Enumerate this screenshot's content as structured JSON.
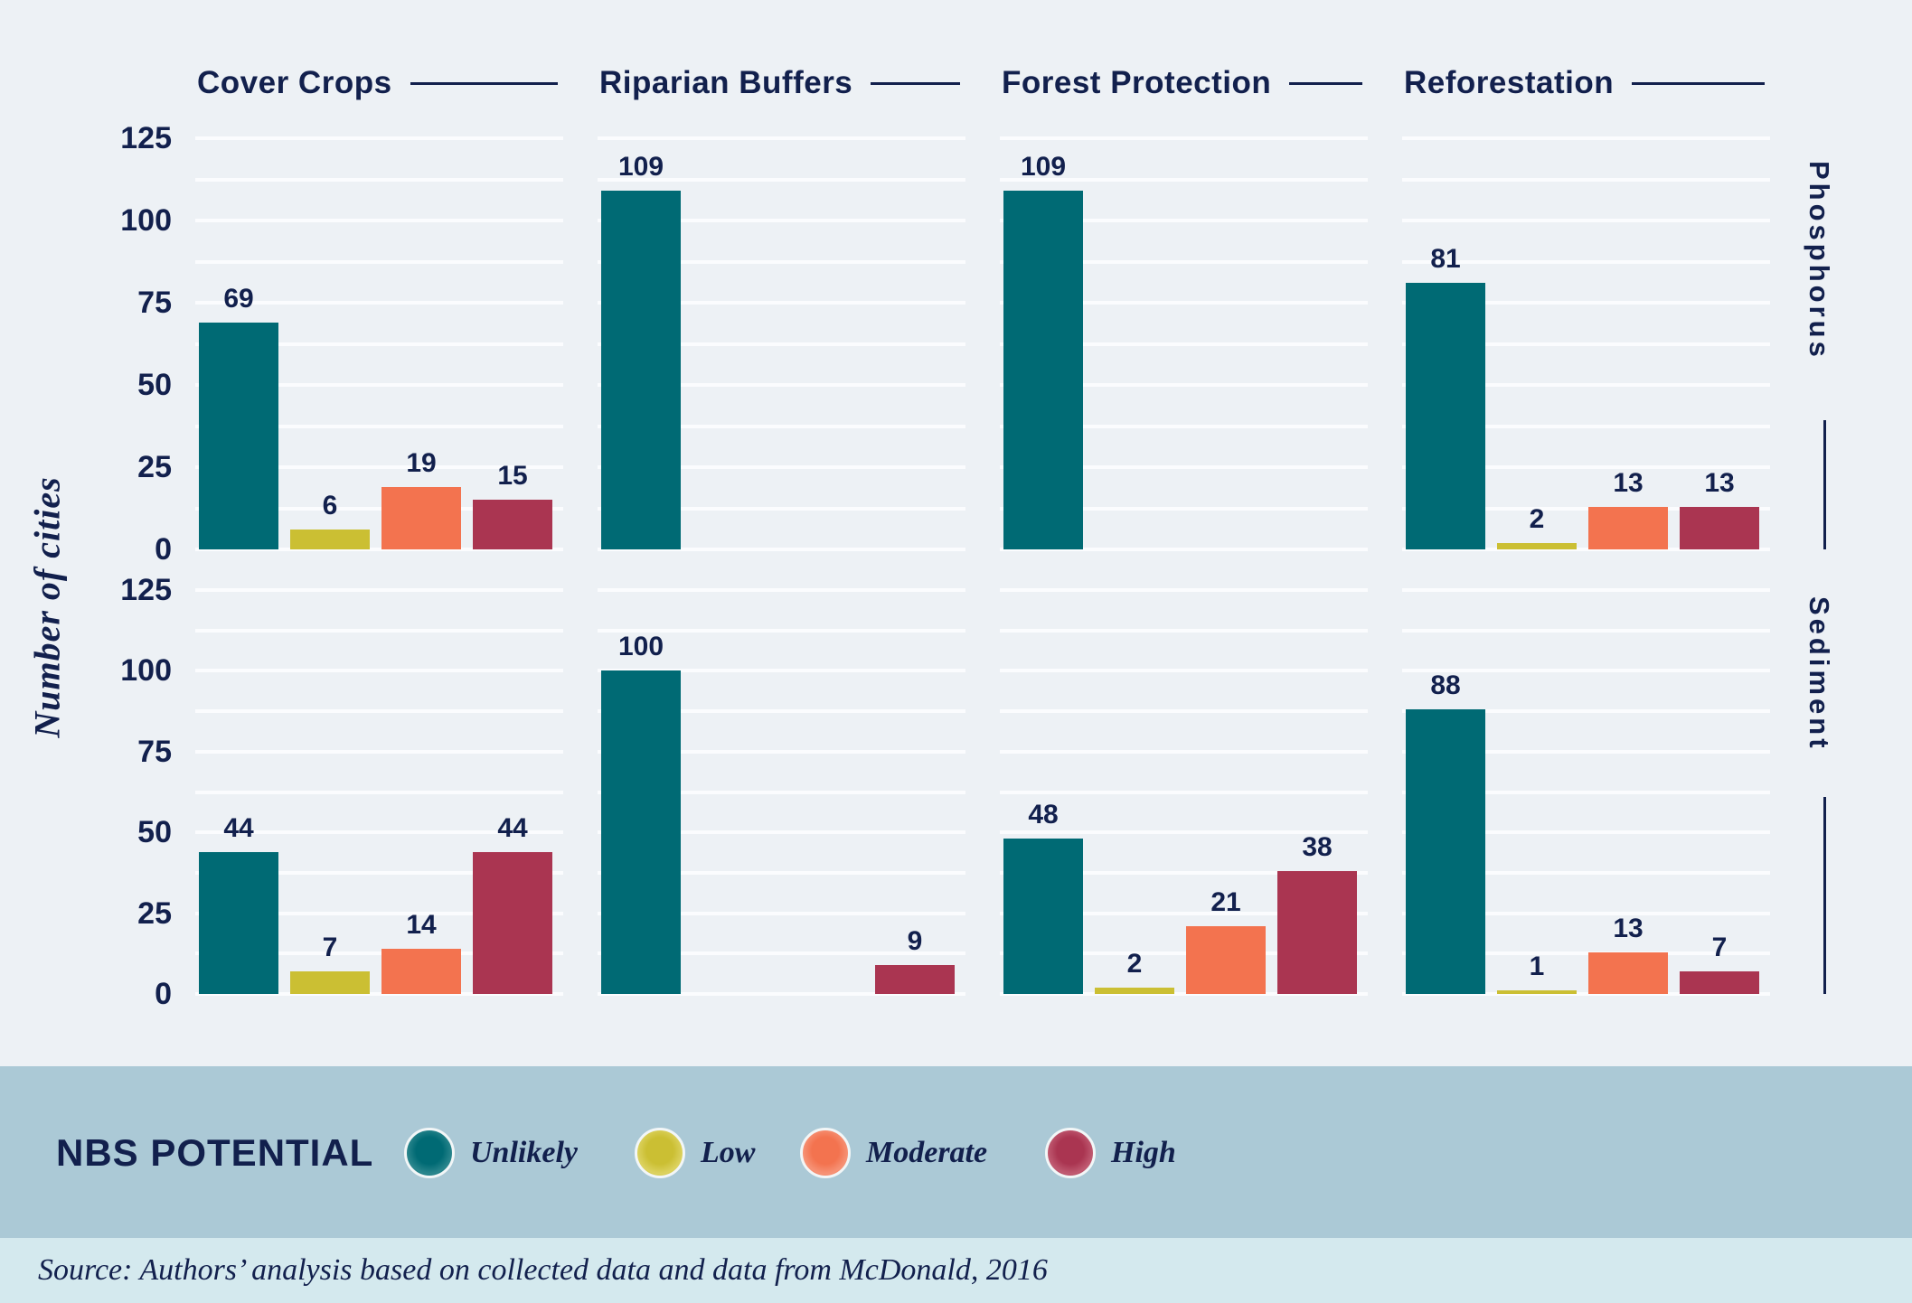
{
  "figure": {
    "y_axis_title": "Number of cities",
    "y_ticks": [
      125,
      100,
      75,
      50,
      25,
      0
    ]
  },
  "chart_data": {
    "type": "bar",
    "title": "",
    "xlabel": "",
    "ylabel": "Number of cities",
    "ylim": [
      0,
      125
    ],
    "gridline_step": 12.5,
    "grid": "horizontal white lines every 12.5, labels every 25",
    "legend_position": "bottom band",
    "columns": [
      "Cover Crops",
      "Riparian Buffers",
      "Forest Protection",
      "Reforestation"
    ],
    "rows": [
      "Phosphorus",
      "Sediment"
    ],
    "series": [
      {
        "name": "Unlikely",
        "color": "#006a74",
        "color_light": "#2b868d"
      },
      {
        "name": "Low",
        "color": "#cbbf33",
        "color_light": "#dcd260"
      },
      {
        "name": "Moderate",
        "color": "#f3734f",
        "color_light": "#f69377"
      },
      {
        "name": "High",
        "color": "#aa3551",
        "color_light": "#c05b72"
      }
    ],
    "values": {
      "Phosphorus": {
        "Cover Crops": [
          69,
          6,
          19,
          15
        ],
        "Riparian Buffers": [
          109,
          null,
          null,
          null
        ],
        "Forest Protection": [
          109,
          null,
          null,
          null
        ],
        "Reforestation": [
          81,
          2,
          13,
          13
        ]
      },
      "Sediment": {
        "Cover Crops": [
          44,
          7,
          14,
          44
        ],
        "Riparian Buffers": [
          100,
          null,
          null,
          9
        ],
        "Forest Protection": [
          48,
          2,
          21,
          38
        ],
        "Reforestation": [
          88,
          1,
          13,
          7
        ]
      }
    }
  },
  "legend": {
    "title": "NBS POTENTIAL"
  },
  "source": {
    "text": "Source: Authors’ analysis based on collected data and data from McDonald, 2016"
  },
  "colors": {
    "background": "#edf1f5",
    "gridline": "#fbfcfe",
    "text_navy": "#12204d",
    "legend_band": "#abc9d6",
    "source_band": "#d4e9ee"
  }
}
